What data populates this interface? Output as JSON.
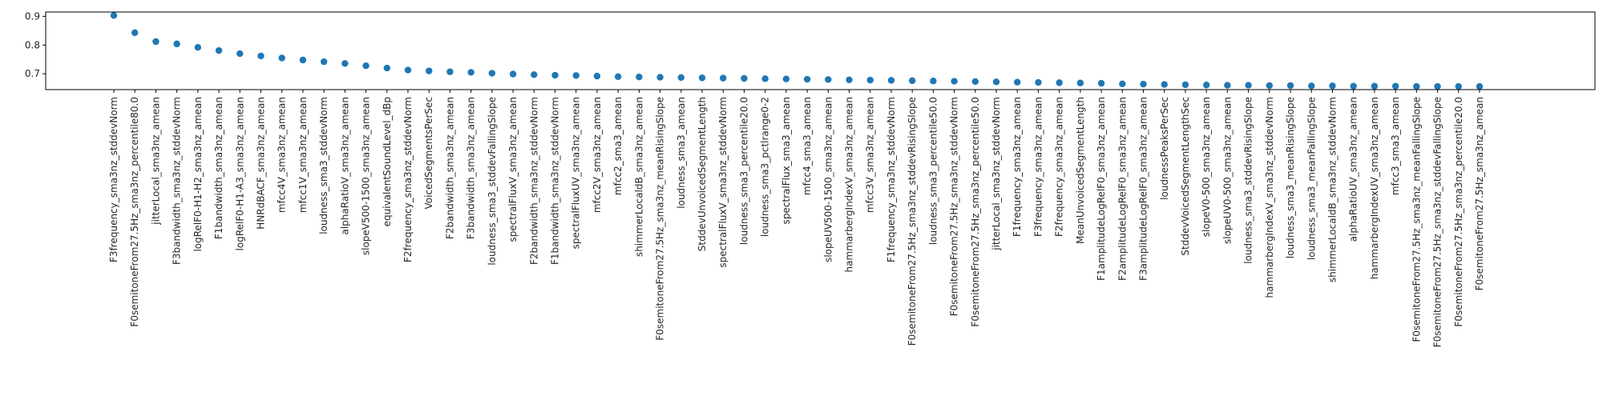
{
  "chart_data": {
    "type": "scatter",
    "title": "",
    "xlabel": "",
    "ylabel": "",
    "ylim": [
      0.645,
      0.915
    ],
    "yticks": [
      0.7,
      0.8,
      0.9
    ],
    "ytick_labels": [
      "0.7",
      "0.8",
      "0.9"
    ],
    "grid": false,
    "legend": "none",
    "marker_color": "#1f77b4",
    "categories": [
      "F3frequency_sma3nz_stddevNorm",
      "F0semitoneFrom27.5Hz_sma3nz_percentile80.0",
      "jitterLocal_sma3nz_amean",
      "F3bandwidth_sma3nz_stddevNorm",
      "logRelF0-H1-H2_sma3nz_amean",
      "F1bandwidth_sma3nz_amean",
      "logRelF0-H1-A3_sma3nz_amean",
      "HNRdBACF_sma3nz_amean",
      "mfcc4V_sma3nz_amean",
      "mfcc1V_sma3nz_amean",
      "loudness_sma3_stddevNorm",
      "alphaRatioV_sma3nz_amean",
      "slopeV500-1500_sma3nz_amean",
      "equivalentSoundLevel_dBp",
      "F2frequency_sma3nz_stddevNorm",
      "VoicedSegmentsPerSec",
      "F2bandwidth_sma3nz_amean",
      "F3bandwidth_sma3nz_amean",
      "loudness_sma3_stddevFallingSlope",
      "spectralFluxV_sma3nz_amean",
      "F2bandwidth_sma3nz_stddevNorm",
      "F1bandwidth_sma3nz_stddevNorm",
      "spectralFluxUV_sma3nz_amean",
      "mfcc2V_sma3nz_amean",
      "mfcc2_sma3_amean",
      "shimmerLocaldB_sma3nz_amean",
      "F0semitoneFrom27.5Hz_sma3nz_meanRisingSlope",
      "loudness_sma3_amean",
      "StddevUnvoicedSegmentLength",
      "spectralFluxV_sma3nz_stddevNorm",
      "loudness_sma3_percentile20.0",
      "loudness_sma3_pctlrange0-2",
      "spectralFlux_sma3_amean",
      "mfcc4_sma3_amean",
      "slopeUV500-1500_sma3nz_amean",
      "hammarbergIndexV_sma3nz_amean",
      "mfcc3V_sma3nz_amean",
      "F1frequency_sma3nz_stddevNorm",
      "F0semitoneFrom27.5Hz_sma3nz_stddevRisingSlope",
      "loudness_sma3_percentile50.0",
      "F0semitoneFrom27.5Hz_sma3nz_stddevNorm",
      "F0semitoneFrom27.5Hz_sma3nz_percentile50.0",
      "jitterLocal_sma3nz_stddevNorm",
      "F1frequency_sma3nz_amean",
      "F3frequency_sma3nz_amean",
      "F2frequency_sma3nz_amean",
      "MeanUnvoicedSegmentLength",
      "F1amplitudeLogRelF0_sma3nz_amean",
      "F2amplitudeLogRelF0_sma3nz_amean",
      "F3amplitudeLogRelF0_sma3nz_amean",
      "loudnessPeaksPerSec",
      "StddevVoicedSegmentLengthSec",
      "slopeV0-500_sma3nz_amean",
      "slopeUV0-500_sma3nz_amean",
      "loudness_sma3_stddevRisingSlope",
      "hammarbergIndexV_sma3nz_stddevNorm",
      "loudness_sma3_meanRisingSlope",
      "loudness_sma3_meanFallingSlope",
      "shimmerLocaldB_sma3nz_stddevNorm",
      "alphaRatioUV_sma3nz_amean",
      "hammarbergIndexUV_sma3nz_amean",
      "mfcc3_sma3_amean",
      "F0semitoneFrom27.5Hz_sma3nz_meanFallingSlope",
      "F0semitoneFrom27.5Hz_sma3nz_stddevFallingSlope",
      "F0semitoneFrom27.5Hz_sma3nz_percentile20.0",
      "F0semitoneFrom27.5Hz_sma3nz_amean"
    ],
    "values": [
      0.903,
      0.843,
      0.812,
      0.804,
      0.792,
      0.781,
      0.77,
      0.762,
      0.755,
      0.748,
      0.742,
      0.736,
      0.728,
      0.72,
      0.713,
      0.71,
      0.707,
      0.705,
      0.702,
      0.699,
      0.697,
      0.695,
      0.694,
      0.692,
      0.69,
      0.689,
      0.688,
      0.687,
      0.686,
      0.685,
      0.684,
      0.683,
      0.682,
      0.681,
      0.68,
      0.679,
      0.678,
      0.677,
      0.676,
      0.675,
      0.674,
      0.673,
      0.672,
      0.671,
      0.67,
      0.669,
      0.668,
      0.667,
      0.665,
      0.664,
      0.663,
      0.662,
      0.661,
      0.66,
      0.66,
      0.659,
      0.659,
      0.658,
      0.658,
      0.657,
      0.657,
      0.657,
      0.656,
      0.656,
      0.656,
      0.656
    ]
  }
}
